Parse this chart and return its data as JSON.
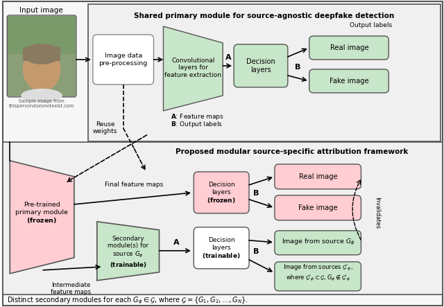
{
  "green_light": "#c8e6c9",
  "pink_light": "#ffcdd2",
  "white_box": "#ffffff",
  "gray_bg": "#f0f0f0",
  "title_top": "Shared primary module for source-agnostic deepfake detection",
  "title_bottom": "Proposed modular source-specific attribution framework",
  "footer": "Distinct secondary modules for each $G_\\phi \\in \\mathcal{G}$, where $\\mathcal{G} = \\{G_1, G_2, \\ldots, G_N\\}$."
}
